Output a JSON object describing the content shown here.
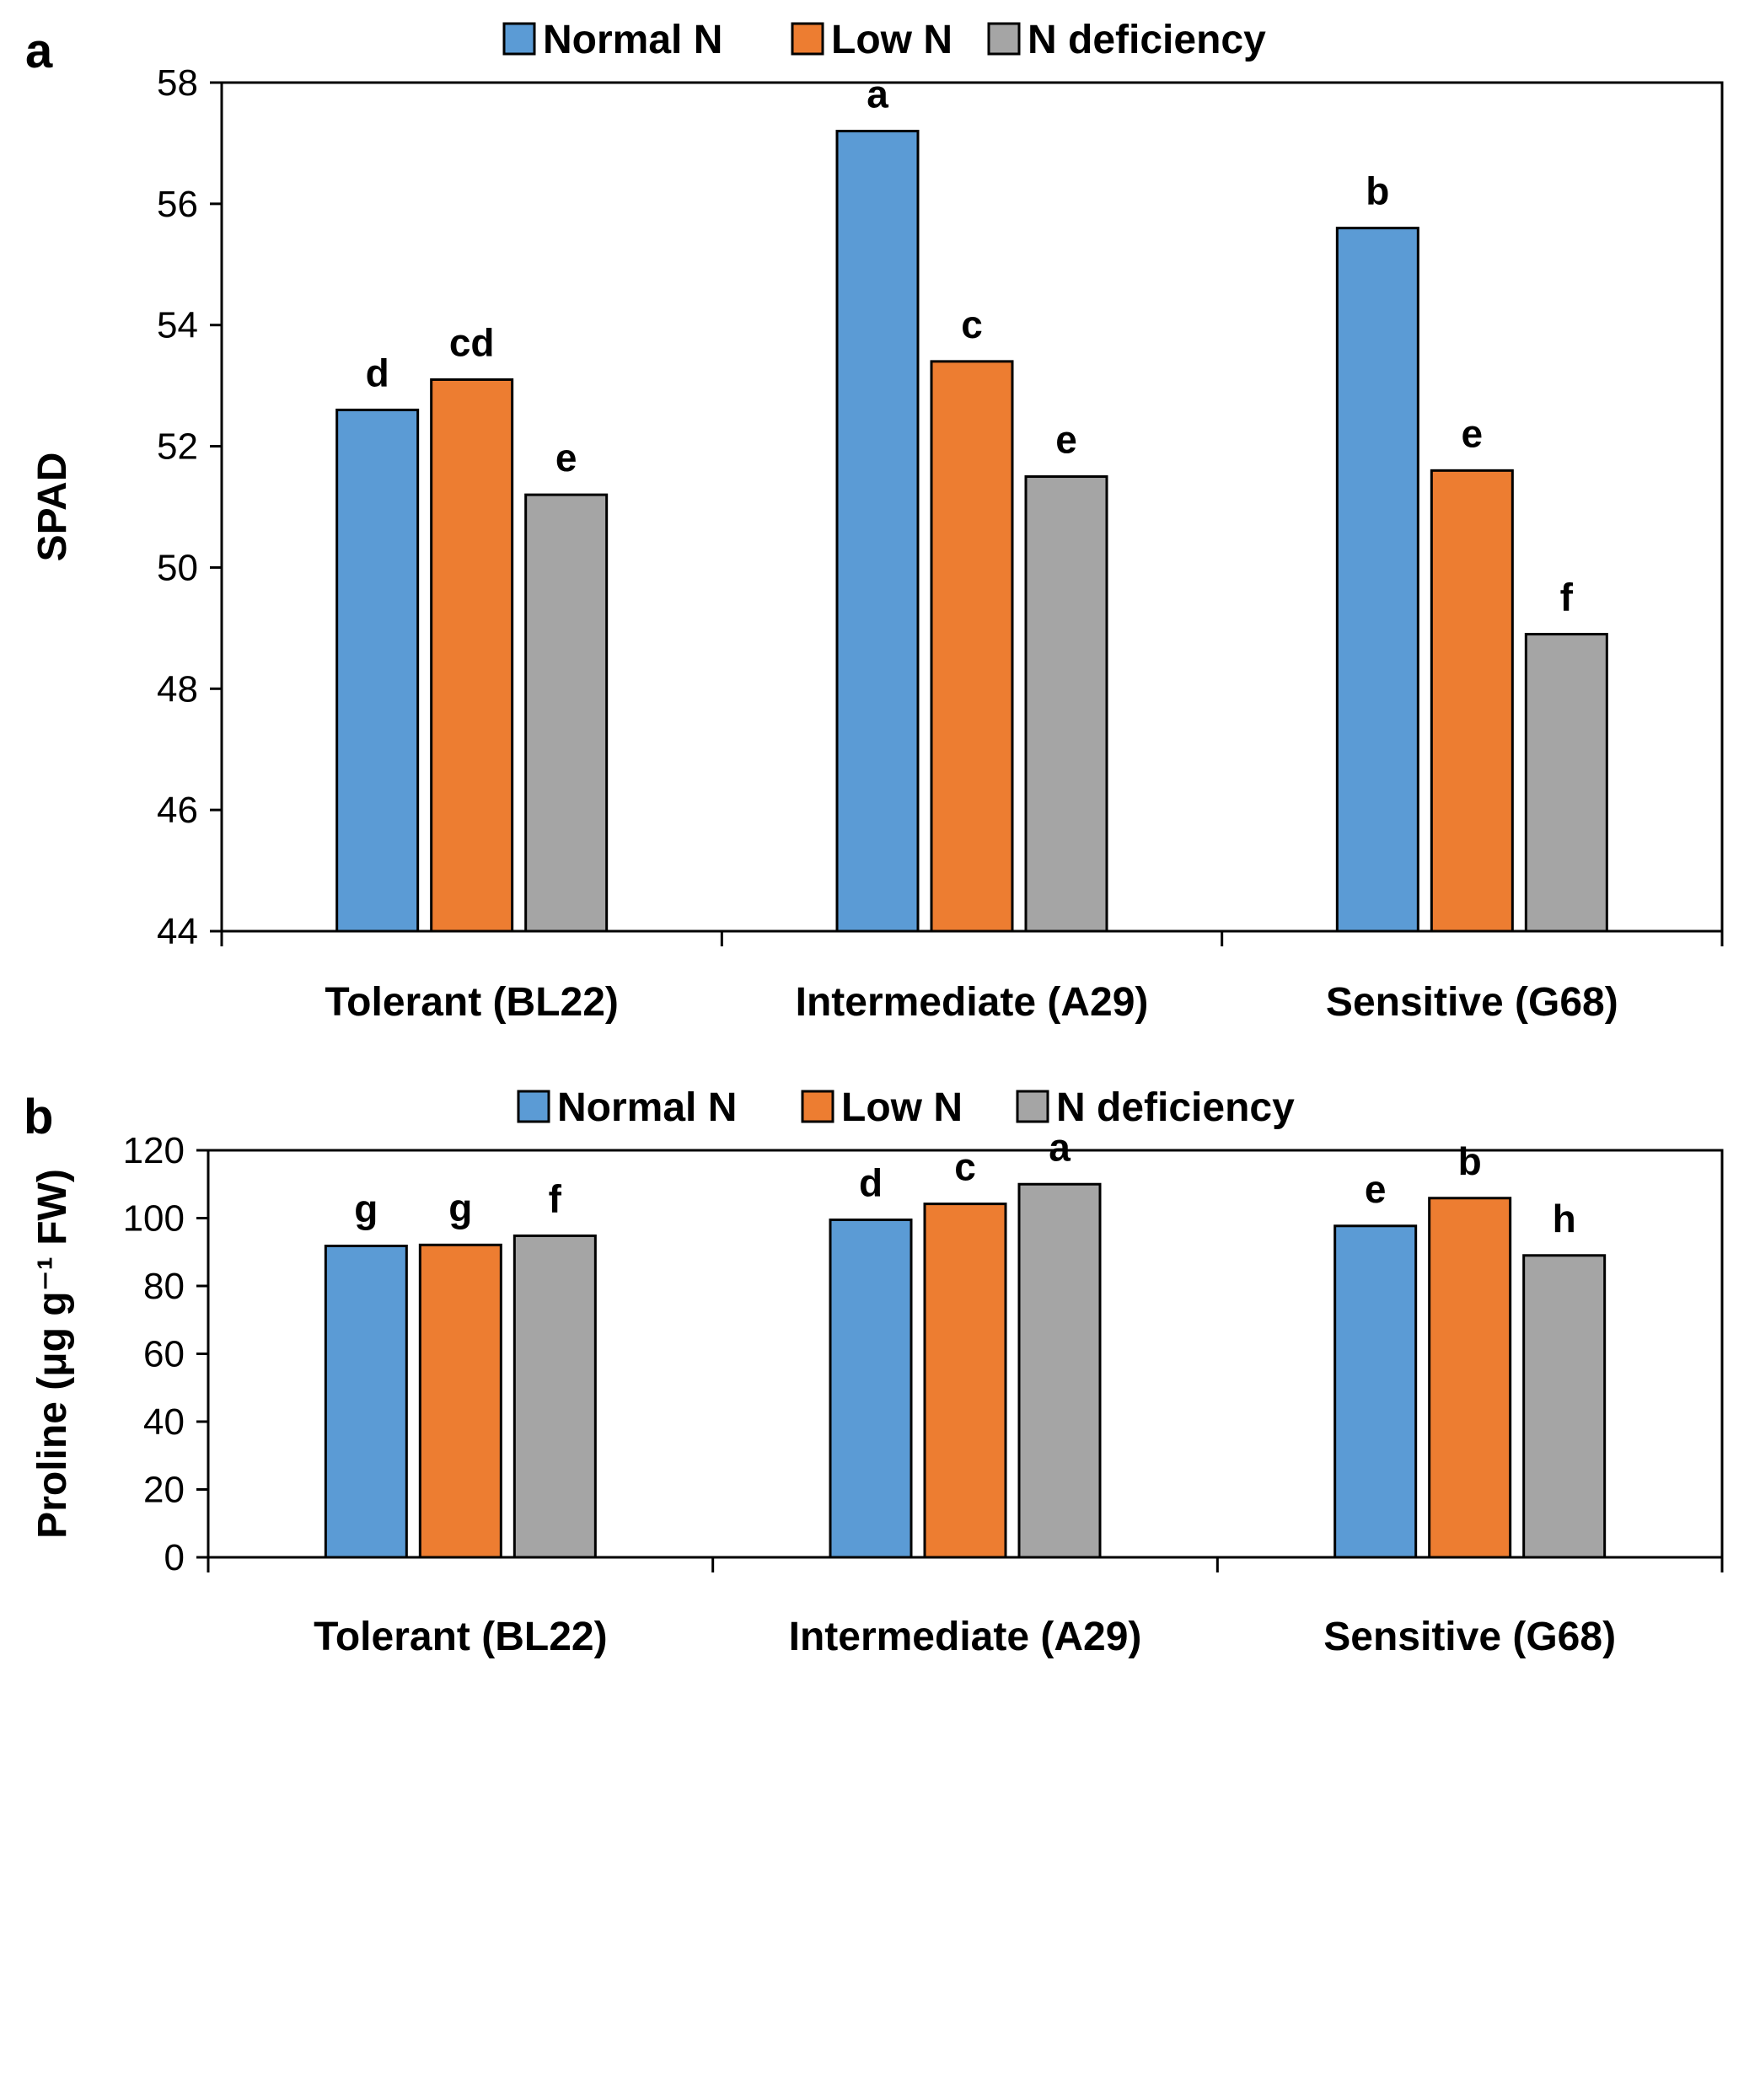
{
  "colors": {
    "Normal N": "#5b9bd5",
    "Low N": "#ed7d31",
    "N deficiency": "#a5a5a5"
  },
  "chart_data": [
    {
      "panel": "a",
      "type": "bar",
      "categories": [
        "Tolerant (BL22)",
        "Intermediate (A29)",
        "Sensitive (G68)"
      ],
      "series": [
        {
          "name": "Normal N",
          "values": [
            52.6,
            57.2,
            55.6
          ],
          "letters": [
            "d",
            "a",
            "b"
          ]
        },
        {
          "name": "Low N",
          "values": [
            53.1,
            53.4,
            51.6
          ],
          "letters": [
            "cd",
            "c",
            "e"
          ]
        },
        {
          "name": "N deficiency",
          "values": [
            51.2,
            51.5,
            48.9
          ],
          "letters": [
            "e",
            "e",
            "f"
          ]
        }
      ],
      "ylabel": "SPAD",
      "ylim": [
        44,
        58
      ],
      "yticks": [
        44,
        46,
        48,
        50,
        52,
        54,
        56,
        58
      ],
      "legend": "top"
    },
    {
      "panel": "b",
      "type": "bar",
      "categories": [
        "Tolerant (BL22)",
        "Intermediate (A29)",
        "Sensitive (G68)"
      ],
      "series": [
        {
          "name": "Normal N",
          "values": [
            91.8,
            99.5,
            97.7
          ],
          "letters": [
            "g",
            "d",
            "e"
          ]
        },
        {
          "name": "Low N",
          "values": [
            92.1,
            104.2,
            105.9
          ],
          "letters": [
            "g",
            "c",
            "b"
          ]
        },
        {
          "name": "N deficiency",
          "values": [
            94.8,
            110.0,
            89.0
          ],
          "letters": [
            "f",
            "a",
            "h"
          ]
        }
      ],
      "ylabel": "Proline (μg g⁻¹ FW)",
      "ylim": [
        0,
        120
      ],
      "yticks": [
        0,
        20,
        40,
        60,
        80,
        100,
        120
      ],
      "legend": "top"
    }
  ]
}
